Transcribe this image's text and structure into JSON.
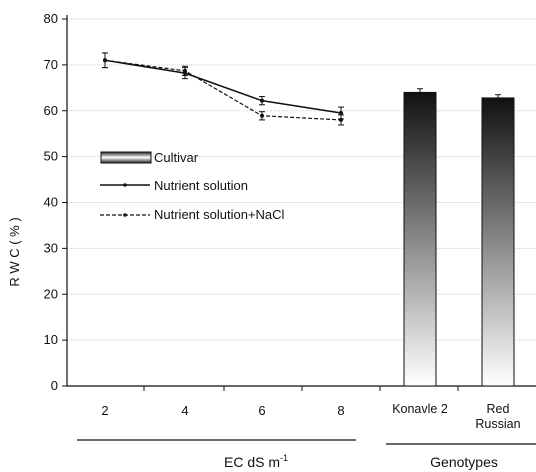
{
  "chart_data": {
    "type": "line",
    "ylabel": "R W C ( % )",
    "ylim": [
      0,
      80
    ],
    "yticks": [
      0,
      10,
      20,
      30,
      40,
      50,
      60,
      70,
      80
    ],
    "grid": true,
    "legend_placement": "left-middle",
    "line_panel": {
      "categories": [
        "2",
        "4",
        "6",
        "8"
      ],
      "series": [
        {
          "name": "Nutrient solution",
          "style": "solid",
          "values": [
            71.0,
            68.2,
            62.2,
            59.5
          ],
          "errors": [
            1.6,
            1.2,
            0.9,
            1.3
          ]
        },
        {
          "name": "Nutrient solution+NaCl",
          "style": "dashed",
          "values": [
            71.0,
            68.7,
            58.9,
            58.0
          ],
          "errors": [
            1.6,
            1.0,
            0.9,
            1.1
          ]
        }
      ]
    },
    "bar_panel": {
      "series_name": "Cultivar",
      "categories": [
        "Konavle 2",
        "Red\nRussian"
      ],
      "values": [
        64.0,
        62.8
      ],
      "errors": [
        0.8,
        0.7
      ]
    },
    "group_labels": {
      "ec": "EC dS m",
      "ec_superscript": "-1",
      "genotypes": "Genotypes"
    },
    "colors": {
      "axis": "#111111",
      "grid": "#cfcfcf",
      "bar_top": "#111111",
      "bar_bottom": "#ffffff",
      "line": "#111111"
    }
  }
}
